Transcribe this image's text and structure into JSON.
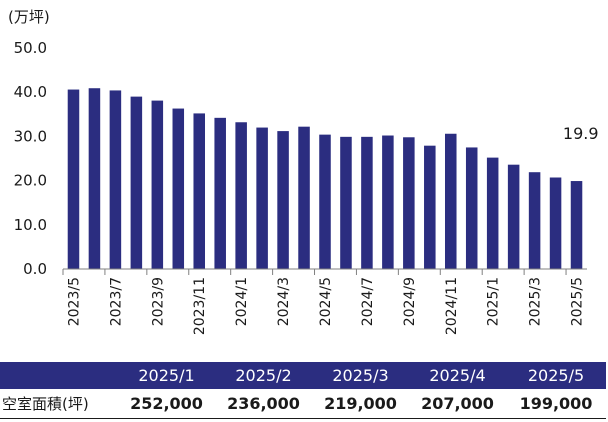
{
  "colors": {
    "bar": "#2b2d80",
    "axis": "#808080",
    "table_header": "#2b2d80"
  },
  "chart_data": {
    "type": "bar",
    "unit_label": "(万坪)",
    "categories": [
      "2023/5",
      "2023/6",
      "2023/7",
      "2023/8",
      "2023/9",
      "2023/10",
      "2023/11",
      "2023/12",
      "2024/1",
      "2024/2",
      "2024/3",
      "2024/4",
      "2024/5",
      "2024/6",
      "2024/7",
      "2024/8",
      "2024/9",
      "2024/10",
      "2024/11",
      "2024/12",
      "2025/1",
      "2025/2",
      "2025/3",
      "2025/4",
      "2025/5"
    ],
    "x_tick_labels": [
      "2023/5",
      "2023/7",
      "2023/9",
      "2023/11",
      "2024/1",
      "2024/3",
      "2024/5",
      "2024/7",
      "2024/9",
      "2024/11",
      "2025/1",
      "2025/3",
      "2025/5"
    ],
    "values": [
      40.6,
      40.9,
      40.4,
      39.0,
      38.1,
      36.3,
      35.2,
      34.2,
      33.2,
      32.0,
      31.2,
      32.2,
      30.4,
      29.9,
      29.9,
      30.2,
      29.8,
      27.9,
      30.6,
      27.5,
      25.2,
      23.6,
      21.9,
      20.7,
      19.9
    ],
    "y_tick_labels": [
      "0.0",
      "10.0",
      "20.0",
      "30.0",
      "40.0",
      "50.0"
    ],
    "ylim": [
      0,
      50
    ],
    "data_labels": [
      {
        "index": 24,
        "text": "19.9"
      }
    ],
    "grid": false
  },
  "table": {
    "months": [
      "2025/1",
      "2025/2",
      "2025/3",
      "2025/4",
      "2025/5"
    ],
    "row_label": "空室面積(坪)",
    "values": [
      "252,000",
      "236,000",
      "219,000",
      "207,000",
      "199,000"
    ]
  }
}
